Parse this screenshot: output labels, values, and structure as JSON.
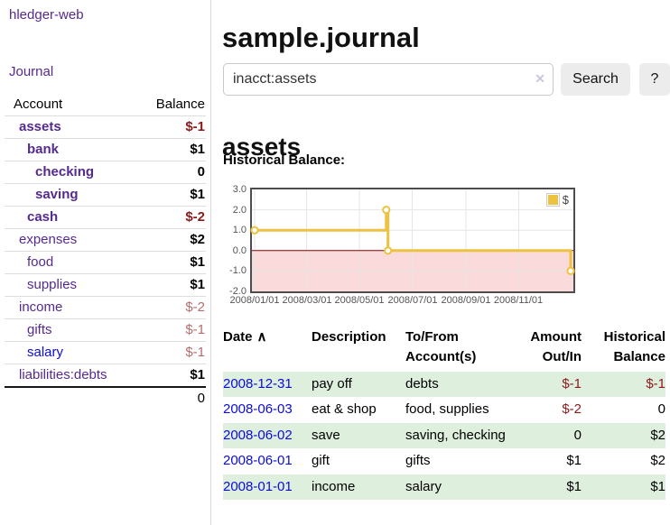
{
  "app": {
    "brand": "hledger-web",
    "nav_journal": "Journal"
  },
  "colors": {
    "link_purple": "#552a90",
    "link_blue": "#0b0bdd",
    "negative_strong": "#8b1a1a",
    "negative_soft": "#b76c6c",
    "row_highlight_green": "#dfefde"
  },
  "sidebar": {
    "header": {
      "account": "Account",
      "balance": "Balance"
    },
    "accounts": [
      {
        "name": "assets",
        "depth": 1,
        "in_filter": true,
        "balance": "$-1",
        "balance_style": "neg-strong"
      },
      {
        "name": "bank",
        "depth": 2,
        "in_filter": true,
        "balance": "$1",
        "balance_style": "pos"
      },
      {
        "name": "checking",
        "depth": 3,
        "in_filter": true,
        "balance": "0",
        "balance_style": "pos"
      },
      {
        "name": "saving",
        "depth": 3,
        "in_filter": true,
        "balance": "$1",
        "balance_style": "pos"
      },
      {
        "name": "cash",
        "depth": 2,
        "in_filter": true,
        "balance": "$-2",
        "balance_style": "neg-strong"
      },
      {
        "name": "expenses",
        "depth": 1,
        "in_filter": false,
        "balance": "$2",
        "balance_style": "pos"
      },
      {
        "name": "food",
        "depth": 2,
        "in_filter": false,
        "balance": "$1",
        "balance_style": "pos"
      },
      {
        "name": "supplies",
        "depth": 2,
        "in_filter": false,
        "balance": "$1",
        "balance_style": "pos"
      },
      {
        "name": "income",
        "depth": 1,
        "in_filter": false,
        "balance": "$-2",
        "balance_style": "neg-soft"
      },
      {
        "name": "gifts",
        "depth": 2,
        "in_filter": false,
        "balance": "$-1",
        "balance_style": "neg-soft"
      },
      {
        "name": "salary",
        "depth": 2,
        "in_filter": false,
        "link_style": "blue",
        "balance": "$-1",
        "balance_style": "neg-soft"
      },
      {
        "name": "liabilities:debts",
        "depth": 1,
        "in_filter": false,
        "balance": "$1",
        "balance_style": "pos"
      }
    ],
    "total": "0"
  },
  "header": {
    "title": "sample.journal"
  },
  "search": {
    "value": "inacct:assets",
    "clear_icon": "✕",
    "button_label": "Search",
    "help_label": "?"
  },
  "main": {
    "account_title": "assets",
    "chart_label": "Historical Balance:"
  },
  "chart_data": {
    "type": "line",
    "step": true,
    "title": "Historical Balance",
    "series": [
      {
        "name": "$",
        "color": "#edc240",
        "points": [
          {
            "x": "2008-01-01",
            "y": 1
          },
          {
            "x": "2008-06-01",
            "y": 2
          },
          {
            "x": "2008-06-03",
            "y": 0
          },
          {
            "x": "2008-12-31",
            "y": -1
          }
        ]
      }
    ],
    "xrange": [
      "2008-01-01",
      "2008-12-31"
    ],
    "ylim": [
      -2,
      3
    ],
    "yticks": [
      "3.0",
      "2.0",
      "1.0",
      "0.0",
      "-1.0",
      "-2.0"
    ],
    "xticks": [
      "2008/01/01",
      "2008/03/01",
      "2008/05/01",
      "2008/07/01",
      "2008/09/01",
      "2008/11/01"
    ],
    "grid": true,
    "legend_position": "ne",
    "style_colors": {
      "negative_region": "#fadada",
      "zero_line": "#8b0000",
      "gridline": "#e6e6e6",
      "border": "#4d4d4d",
      "axis_text": "#545454",
      "marker_fill": "#ffffff"
    }
  },
  "register": {
    "sort_caret": "∧",
    "columns": {
      "date": "Date",
      "description": "Description",
      "accounts": "To/From Account(s)",
      "amount": "Amount Out/In",
      "balance": "Historical Balance"
    },
    "rows": [
      {
        "date": "2008-12-31",
        "description": "pay off",
        "accounts": "debts",
        "amount": "$-1",
        "balance": "$-1"
      },
      {
        "date": "2008-06-03",
        "description": "eat & shop",
        "accounts": "food, supplies",
        "amount": "$-2",
        "balance": "0"
      },
      {
        "date": "2008-06-02",
        "description": "save",
        "accounts": "saving, checking",
        "amount": "0",
        "balance": "$2"
      },
      {
        "date": "2008-06-01",
        "description": "gift",
        "accounts": "gifts",
        "amount": "$1",
        "balance": "$2"
      },
      {
        "date": "2008-01-01",
        "description": "income",
        "accounts": "salary",
        "amount": "$1",
        "balance": "$1"
      }
    ]
  }
}
